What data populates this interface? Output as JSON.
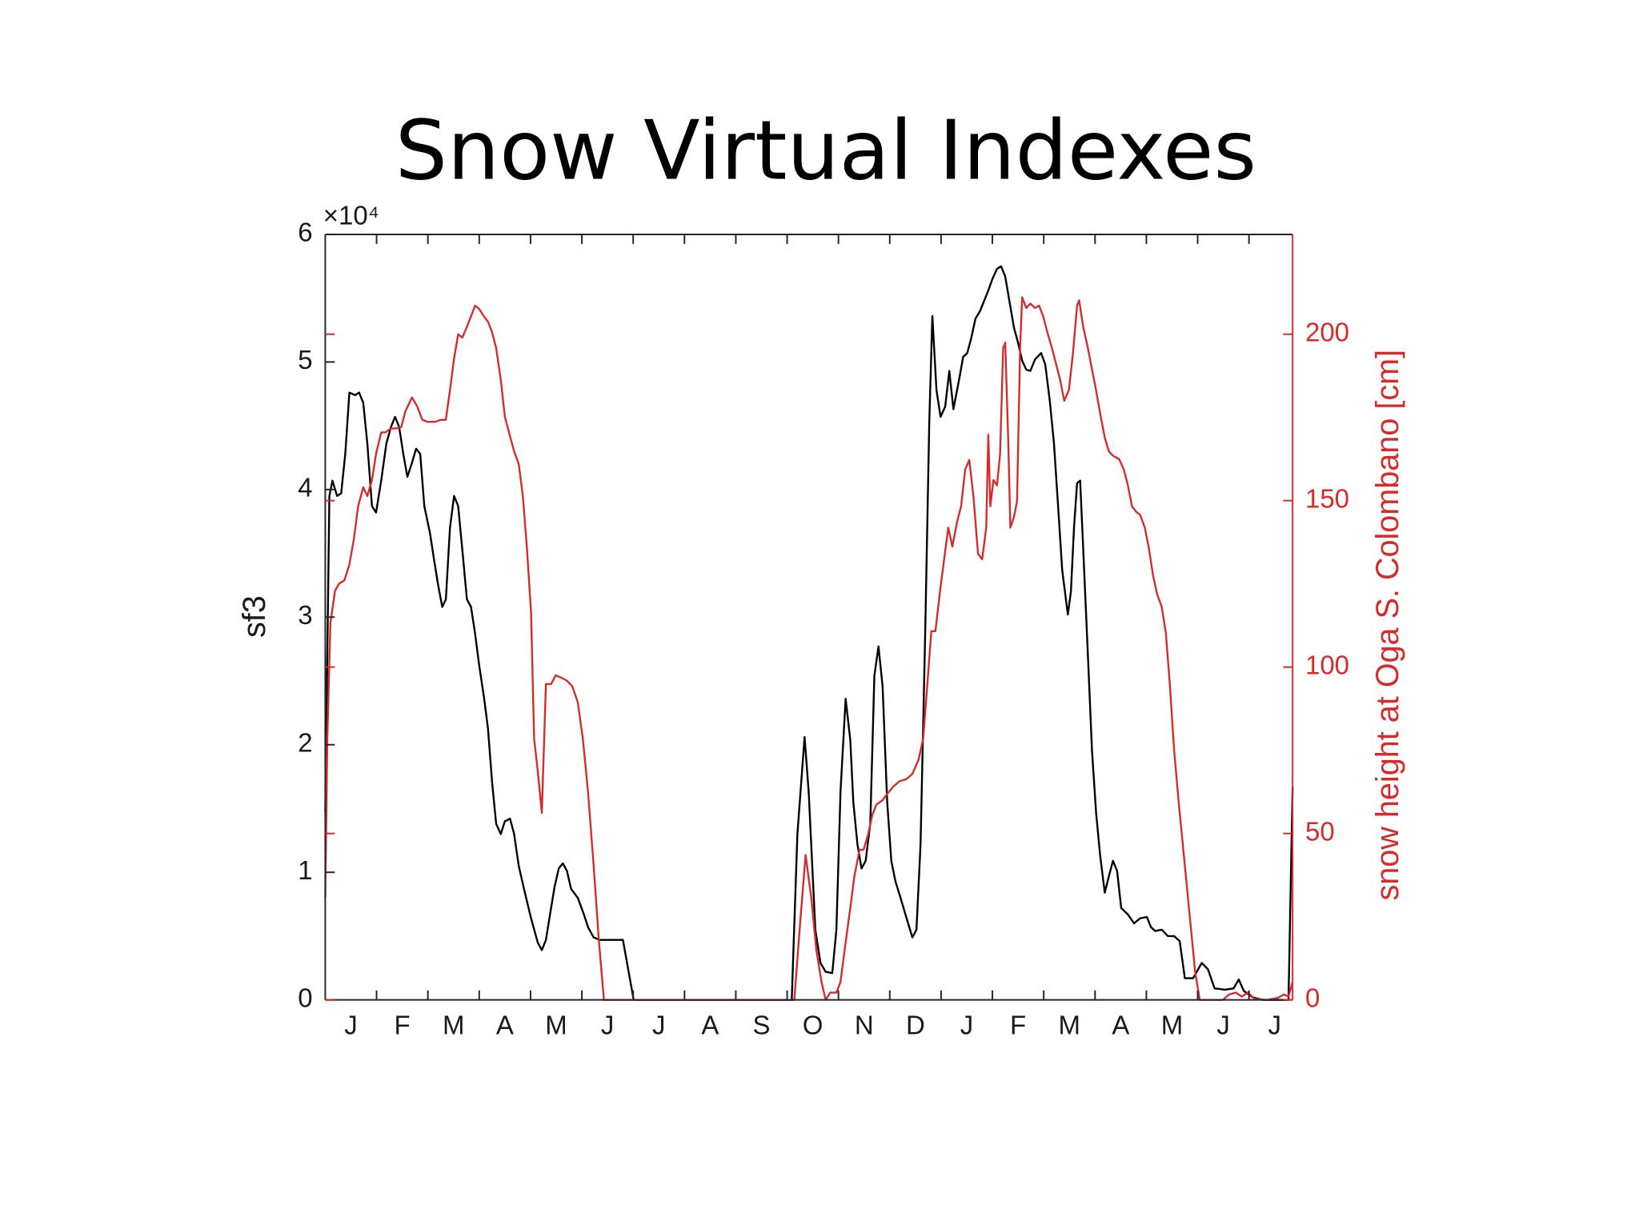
{
  "chart_data": {
    "type": "line",
    "title": "Snow Virtual Indexes",
    "ylabel": "sf3",
    "y2label": "snow height at Oga S. Colombano [cm]",
    "y_multiplier": "×10⁴",
    "categories": [
      "J",
      "F",
      "M",
      "A",
      "M",
      "J",
      "J",
      "A",
      "S",
      "O",
      "N",
      "D",
      "J",
      "F",
      "M",
      "A",
      "M",
      "J",
      "J"
    ],
    "xlim": [
      0,
      18.85
    ],
    "xticks": [
      1,
      2,
      3,
      4,
      5,
      6,
      7,
      8,
      9,
      10,
      11,
      12,
      13,
      14,
      15,
      16,
      17,
      18
    ],
    "ylim": [
      0,
      6
    ],
    "yticks": [
      0,
      1,
      2,
      3,
      4,
      5,
      6
    ],
    "y2lim": [
      0,
      230
    ],
    "y2ticks": [
      0,
      50,
      100,
      150,
      200
    ],
    "series": [
      {
        "name": "sf3",
        "color": "#000000",
        "axis": "y",
        "x": [
          0.0,
          0.08,
          0.14,
          0.23,
          0.31,
          0.39,
          0.47,
          0.58,
          0.66,
          0.74,
          0.82,
          0.91,
          0.99,
          1.09,
          1.19,
          1.28,
          1.36,
          1.44,
          1.52,
          1.6,
          1.69,
          1.77,
          1.85,
          1.93,
          2.04,
          2.12,
          2.2,
          2.28,
          2.35,
          2.43,
          2.51,
          2.59,
          2.67,
          2.76,
          2.84,
          2.92,
          3.0,
          3.09,
          3.17,
          3.25,
          3.33,
          3.42,
          3.5,
          3.6,
          3.68,
          3.77,
          3.89,
          4.01,
          4.14,
          4.22,
          4.3,
          4.38,
          4.47,
          4.55,
          4.63,
          4.71,
          4.79,
          4.92,
          5.04,
          5.12,
          5.23,
          5.35,
          5.8,
          6.01,
          9.09,
          9.2,
          9.34,
          9.42,
          9.55,
          9.65,
          9.75,
          9.88,
          9.96,
          10.04,
          10.14,
          10.23,
          10.29,
          10.37,
          10.45,
          10.53,
          10.62,
          10.7,
          10.78,
          10.86,
          10.95,
          11.03,
          11.11,
          11.21,
          11.32,
          11.44,
          11.52,
          11.6,
          11.69,
          11.77,
          11.83,
          11.91,
          11.99,
          12.08,
          12.16,
          12.24,
          12.35,
          12.43,
          12.51,
          12.59,
          12.67,
          12.76,
          12.84,
          12.92,
          13.0,
          13.09,
          13.17,
          13.25,
          13.33,
          13.42,
          13.5,
          13.58,
          13.66,
          13.74,
          13.83,
          13.95,
          14.03,
          14.12,
          14.2,
          14.28,
          14.36,
          14.47,
          14.53,
          14.59,
          14.65,
          14.71,
          14.77,
          14.86,
          14.94,
          15.02,
          15.1,
          15.19,
          15.27,
          15.35,
          15.43,
          15.51,
          15.64,
          15.76,
          15.88,
          16.01,
          16.09,
          16.17,
          16.3,
          16.42,
          16.54,
          16.65,
          16.75,
          16.91,
          17.08,
          17.2,
          17.33,
          17.53,
          17.7,
          17.8,
          17.9,
          18.07,
          18.27,
          18.77,
          18.85
        ],
        "values": [
          1.47,
          3.95,
          4.07,
          3.95,
          3.97,
          4.28,
          4.76,
          4.74,
          4.76,
          4.68,
          4.36,
          3.87,
          3.82,
          4.07,
          4.36,
          4.49,
          4.57,
          4.49,
          4.28,
          4.1,
          4.21,
          4.32,
          4.28,
          3.87,
          3.66,
          3.45,
          3.25,
          3.08,
          3.14,
          3.7,
          3.95,
          3.87,
          3.53,
          3.14,
          3.08,
          2.87,
          2.62,
          2.38,
          2.13,
          1.71,
          1.38,
          1.3,
          1.4,
          1.42,
          1.3,
          1.05,
          0.84,
          0.64,
          0.45,
          0.39,
          0.47,
          0.67,
          0.89,
          1.03,
          1.07,
          1.01,
          0.87,
          0.8,
          0.67,
          0.57,
          0.49,
          0.47,
          0.47,
          0,
          0,
          1.3,
          2.06,
          1.63,
          0.55,
          0.29,
          0.22,
          0.21,
          0.55,
          1.63,
          2.36,
          2.04,
          1.55,
          1.22,
          1.03,
          1.09,
          1.38,
          2.54,
          2.77,
          2.46,
          1.55,
          1.09,
          0.93,
          0.8,
          0.65,
          0.49,
          0.55,
          1.22,
          2.87,
          4.53,
          5.36,
          4.78,
          4.57,
          4.65,
          4.93,
          4.63,
          4.86,
          5.04,
          5.07,
          5.19,
          5.34,
          5.4,
          5.48,
          5.56,
          5.65,
          5.73,
          5.75,
          5.67,
          5.48,
          5.27,
          5.15,
          5.01,
          4.94,
          4.93,
          5.02,
          5.07,
          4.98,
          4.69,
          4.36,
          3.87,
          3.37,
          3.02,
          3.2,
          3.7,
          4.05,
          4.07,
          3.53,
          2.71,
          1.96,
          1.47,
          1.13,
          0.84,
          0.97,
          1.09,
          1.01,
          0.72,
          0.67,
          0.6,
          0.64,
          0.65,
          0.57,
          0.54,
          0.55,
          0.5,
          0.5,
          0.46,
          0.17,
          0.17,
          0.29,
          0.24,
          0.09,
          0.08,
          0.09,
          0.16,
          0.07,
          0.02,
          0,
          0,
          1.67
        ]
      },
      {
        "name": "snow height",
        "color": "#d62b2b",
        "axis": "y2",
        "x": [
          0.0,
          0.04,
          0.1,
          0.19,
          0.27,
          0.37,
          0.47,
          0.56,
          0.64,
          0.74,
          0.82,
          0.91,
          0.99,
          1.09,
          1.17,
          1.28,
          1.38,
          1.48,
          1.56,
          1.69,
          1.79,
          1.89,
          1.99,
          2.14,
          2.26,
          2.35,
          2.43,
          2.51,
          2.59,
          2.67,
          2.76,
          2.84,
          2.92,
          3.0,
          3.09,
          3.17,
          3.25,
          3.33,
          3.42,
          3.5,
          3.58,
          3.68,
          3.77,
          3.85,
          3.93,
          4.01,
          4.07,
          4.14,
          4.22,
          4.3,
          4.4,
          4.49,
          4.6,
          4.71,
          4.81,
          4.92,
          5.02,
          5.12,
          5.23,
          5.33,
          5.43,
          9.14,
          9.26,
          9.36,
          9.47,
          9.57,
          9.67,
          9.75,
          9.84,
          9.96,
          10.04,
          10.12,
          10.23,
          10.31,
          10.41,
          10.49,
          10.58,
          10.66,
          10.74,
          10.86,
          10.95,
          11.07,
          11.19,
          11.32,
          11.44,
          11.56,
          11.65,
          11.73,
          11.81,
          11.89,
          11.98,
          12.06,
          12.14,
          12.22,
          12.31,
          12.39,
          12.47,
          12.55,
          12.63,
          12.72,
          12.8,
          12.88,
          12.92,
          12.96,
          13.02,
          13.09,
          13.15,
          13.21,
          13.25,
          13.31,
          13.35,
          13.42,
          13.48,
          13.54,
          13.58,
          13.66,
          13.74,
          13.83,
          13.91,
          13.99,
          14.07,
          14.16,
          14.24,
          14.32,
          14.4,
          14.49,
          14.57,
          14.65,
          14.69,
          14.77,
          14.86,
          14.94,
          15.02,
          15.1,
          15.19,
          15.27,
          15.35,
          15.47,
          15.56,
          15.64,
          15.72,
          15.8,
          15.88,
          15.97,
          16.05,
          16.13,
          16.21,
          16.3,
          16.38,
          16.46,
          16.54,
          16.63,
          16.71,
          16.79,
          16.87,
          16.95,
          17.04,
          17.49,
          17.61,
          17.74,
          17.86,
          17.98,
          18.11,
          18.35,
          18.56,
          18.68,
          18.77,
          18.85
        ],
        "values": [
          30.8,
          78.4,
          113.3,
          122.9,
          125.1,
          126.0,
          130.8,
          138.7,
          148.3,
          154.0,
          151.4,
          156.2,
          164.1,
          170.5,
          170.5,
          171.7,
          171.7,
          172.1,
          176.8,
          181.0,
          178.4,
          174.3,
          173.7,
          173.7,
          174.3,
          174.3,
          183.2,
          192.7,
          200.0,
          199.0,
          202.2,
          205.4,
          208.6,
          207.6,
          205.4,
          203.8,
          200.6,
          195.9,
          186.3,
          175.2,
          170.5,
          164.8,
          161.0,
          151.4,
          135.6,
          116.5,
          78.4,
          68.9,
          56.2,
          94.9,
          94.9,
          97.5,
          96.8,
          95.9,
          94.3,
          89.5,
          78.4,
          62.5,
          40.3,
          18.1,
          0,
          0,
          24.4,
          43.5,
          30.8,
          14.9,
          5.4,
          0,
          2.2,
          2.2,
          5.4,
          14.9,
          27.6,
          37.1,
          45.1,
          45.1,
          49.8,
          55.6,
          58.7,
          60.0,
          61.9,
          64.1,
          65.7,
          66.3,
          67.9,
          72.1,
          78.4,
          94.3,
          110.8,
          110.8,
          122.9,
          132.4,
          141.9,
          136.2,
          143.5,
          148.3,
          159.4,
          162.2,
          151.4,
          134.0,
          132.4,
          141.9,
          169.8,
          148.3,
          156.2,
          154.6,
          164.1,
          195.9,
          197.5,
          167.3,
          141.9,
          145.1,
          149.8,
          195.9,
          211.1,
          207.9,
          209.2,
          207.9,
          208.6,
          205.4,
          200.6,
          195.9,
          191.1,
          186.3,
          180.0,
          183.2,
          194.3,
          208.6,
          210.2,
          202.2,
          195.9,
          189.5,
          183.2,
          176.2,
          168.9,
          164.8,
          163.5,
          162.5,
          159.4,
          154.6,
          148.3,
          146.7,
          145.7,
          141.9,
          135.6,
          127.6,
          121.9,
          118.1,
          110.2,
          94.3,
          75.2,
          59.4,
          46.7,
          34.0,
          21.3,
          8.6,
          0,
          0,
          1.6,
          2.2,
          1.0,
          2.2,
          0.3,
          0,
          0.6,
          1.6,
          1.0,
          5.4
        ]
      }
    ]
  }
}
